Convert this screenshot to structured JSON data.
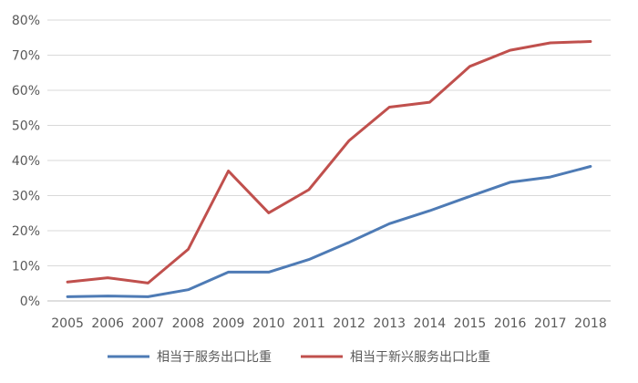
{
  "chart_data": {
    "type": "line",
    "title": "",
    "xlabel": "",
    "ylabel": "",
    "categories": [
      "2005",
      "2006",
      "2007",
      "2008",
      "2009",
      "2010",
      "2011",
      "2012",
      "2013",
      "2014",
      "2015",
      "2016",
      "2017",
      "2018"
    ],
    "ylim": [
      0,
      80
    ],
    "y_ticks": [
      0,
      10,
      20,
      30,
      40,
      50,
      60,
      70,
      80
    ],
    "y_tick_labels": [
      "0%",
      "10%",
      "20%",
      "30%",
      "40%",
      "50%",
      "60%",
      "70%",
      "80%"
    ],
    "grid": true,
    "legend_position": "bottom",
    "series": [
      {
        "name": "相当于服务出口比重",
        "color": "#4e7bb5",
        "values": [
          1.2,
          1.4,
          1.2,
          3.2,
          8.2,
          8.2,
          11.8,
          16.7,
          22.0,
          25.7,
          29.8,
          33.8,
          35.3,
          38.3
        ]
      },
      {
        "name": "相当于新兴服务出口比重",
        "color": "#c0504d",
        "values": [
          5.4,
          6.6,
          5.1,
          14.7,
          37.0,
          25.1,
          31.7,
          45.7,
          55.2,
          56.6,
          66.8,
          71.4,
          73.5,
          73.9
        ]
      }
    ]
  }
}
